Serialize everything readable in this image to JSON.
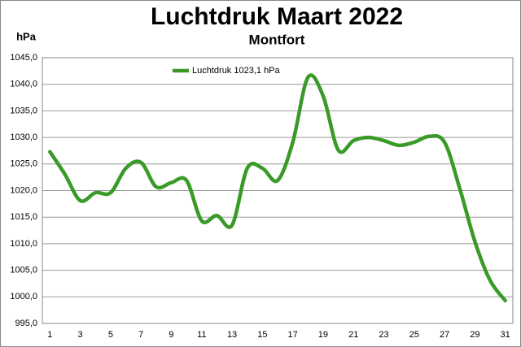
{
  "chart_data": {
    "type": "line",
    "title": "Luchtdruk Maart 2022",
    "subtitle": "Montfort",
    "y_label": "hPa",
    "categories": [
      "1",
      null,
      "3",
      null,
      "5",
      null,
      "7",
      null,
      "9",
      null,
      "11",
      null,
      "13",
      null,
      "15",
      null,
      "17",
      null,
      "19",
      null,
      "21",
      null,
      "23",
      null,
      "25",
      null,
      "27",
      null,
      "29",
      null,
      "31"
    ],
    "series": [
      {
        "name": "Luchtdruk 1023,1 hPa",
        "color": "#3a9a28",
        "values": [
          1027.3,
          1023.0,
          1018.1,
          1019.6,
          1019.6,
          1024.2,
          1025.3,
          1020.7,
          1021.5,
          1021.9,
          1014.3,
          1015.3,
          1013.5,
          1024.2,
          1024.2,
          1021.9,
          1029.1,
          1041.3,
          1037.8,
          1027.6,
          1029.4,
          1030.0,
          1029.4,
          1028.5,
          1029.1,
          1030.2,
          1029.1,
          1020.4,
          1010.4,
          1003.1,
          999.3
        ]
      }
    ],
    "ylim": [
      995,
      1045
    ],
    "yticks": [
      {
        "value": 995,
        "label": "995,0"
      },
      {
        "value": 1000,
        "label": "1000,0"
      },
      {
        "value": 1005,
        "label": "1005,0"
      },
      {
        "value": 1010,
        "label": "1010,0"
      },
      {
        "value": 1015,
        "label": "1015,0"
      },
      {
        "value": 1020,
        "label": "1020,0"
      },
      {
        "value": 1025,
        "label": "1025,0"
      },
      {
        "value": 1030,
        "label": "1030,0"
      },
      {
        "value": 1035,
        "label": "1035,0"
      },
      {
        "value": 1040,
        "label": "1040,0"
      },
      {
        "value": 1045,
        "label": "1045,0"
      }
    ],
    "grid": true
  }
}
